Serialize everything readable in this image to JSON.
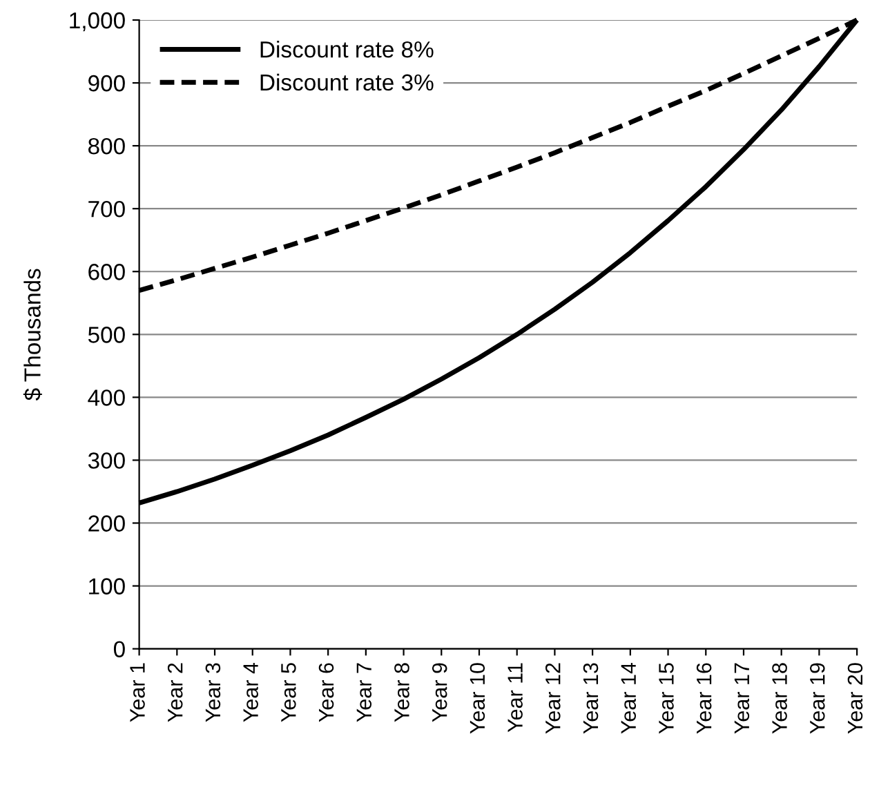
{
  "chart_data": {
    "type": "line",
    "ylabel": "$ Thousands",
    "categories": [
      "Year 1",
      "Year 2",
      "Year 3",
      "Year 4",
      "Year 5",
      "Year 6",
      "Year 7",
      "Year 8",
      "Year 9",
      "Year 10",
      "Year 11",
      "Year 12",
      "Year 13",
      "Year 14",
      "Year 15",
      "Year 16",
      "Year 17",
      "Year 18",
      "Year 19",
      "Year 20"
    ],
    "series": [
      {
        "name": "Discount rate 8%",
        "color": "#000000",
        "line_style": "solid",
        "values": [
          232,
          250,
          270,
          292,
          315,
          340,
          368,
          397,
          429,
          463,
          500,
          540,
          583,
          630,
          681,
          735,
          794,
          857,
          926,
          1000
        ]
      },
      {
        "name": "Discount rate 3%",
        "color": "#000000",
        "line_style": "dashed",
        "values": [
          570,
          587,
          605,
          623,
          642,
          661,
          681,
          701,
          722,
          744,
          766,
          789,
          813,
          837,
          863,
          888,
          915,
          943,
          971,
          1000
        ]
      }
    ],
    "ylim": [
      0,
      1000
    ],
    "yticks": [
      0,
      100,
      200,
      300,
      400,
      500,
      600,
      700,
      800,
      900,
      {
        "value": 1000,
        "label": "1,000"
      }
    ],
    "grid": "y",
    "legend": "top left",
    "marker": "none"
  }
}
